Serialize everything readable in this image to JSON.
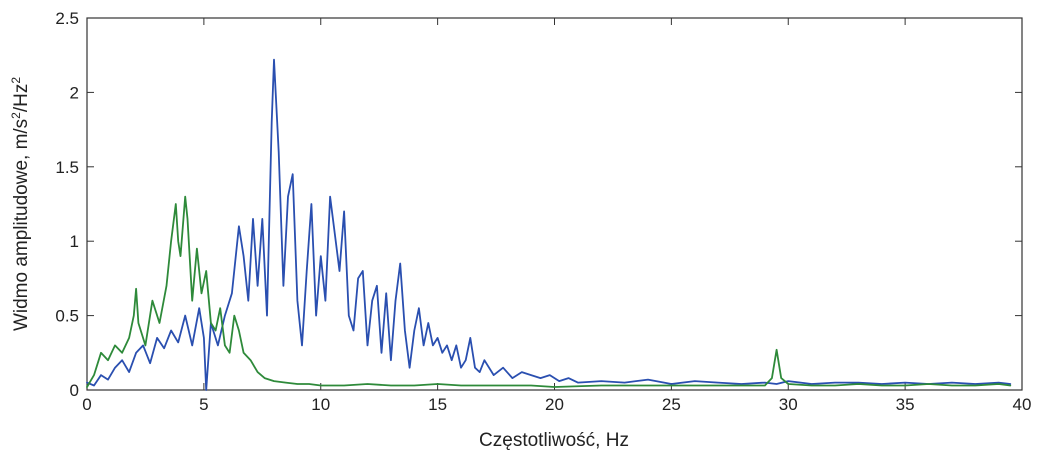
{
  "chart_data": {
    "type": "line",
    "xlabel": "Częstotliwość, Hz",
    "ylabel": "Widmo amplitudowe, m/s",
    "ylabel_sup1": "2",
    "ylabel_mid": "/Hz",
    "ylabel_sup2": "2",
    "xlim": [
      0,
      40
    ],
    "ylim": [
      0,
      2.5
    ],
    "xticks": [
      "0",
      "5",
      "10",
      "15",
      "20",
      "25",
      "30",
      "35",
      "40"
    ],
    "yticks": [
      "0",
      "0.5",
      "1",
      "1.5",
      "2",
      "2.5"
    ],
    "grid": false,
    "series": [
      {
        "color": "#2a4fb0",
        "x": [
          0,
          0.3,
          0.6,
          0.9,
          1.2,
          1.5,
          1.8,
          2.1,
          2.4,
          2.7,
          3.0,
          3.3,
          3.6,
          3.9,
          4.2,
          4.5,
          4.8,
          5.0,
          5.1,
          5.3,
          5.6,
          5.9,
          6.2,
          6.5,
          6.7,
          6.9,
          7.1,
          7.3,
          7.5,
          7.7,
          7.9,
          8.0,
          8.2,
          8.4,
          8.6,
          8.8,
          9.0,
          9.2,
          9.4,
          9.6,
          9.8,
          10.0,
          10.2,
          10.4,
          10.6,
          10.8,
          11.0,
          11.2,
          11.4,
          11.6,
          11.8,
          12.0,
          12.2,
          12.4,
          12.6,
          12.8,
          13.0,
          13.2,
          13.4,
          13.6,
          13.8,
          14.0,
          14.2,
          14.4,
          14.6,
          14.8,
          15.0,
          15.2,
          15.4,
          15.6,
          15.8,
          16.0,
          16.2,
          16.4,
          16.6,
          16.8,
          17.0,
          17.4,
          17.8,
          18.2,
          18.6,
          19.0,
          19.4,
          19.8,
          20.2,
          20.6,
          21.0,
          22,
          23,
          24,
          25,
          26,
          27,
          28,
          29,
          29.5,
          30,
          31,
          32,
          33,
          34,
          35,
          36,
          37,
          38,
          39,
          39.5
        ],
        "y": [
          0.05,
          0.03,
          0.1,
          0.07,
          0.15,
          0.2,
          0.12,
          0.25,
          0.3,
          0.18,
          0.35,
          0.28,
          0.4,
          0.32,
          0.5,
          0.3,
          0.55,
          0.35,
          0.0,
          0.45,
          0.3,
          0.5,
          0.65,
          1.1,
          0.9,
          0.6,
          1.15,
          0.7,
          1.15,
          0.5,
          1.8,
          2.22,
          1.6,
          0.7,
          1.3,
          1.45,
          0.6,
          0.3,
          0.8,
          1.25,
          0.5,
          0.9,
          0.6,
          1.3,
          1.05,
          0.8,
          1.2,
          0.5,
          0.4,
          0.75,
          0.8,
          0.3,
          0.6,
          0.7,
          0.25,
          0.65,
          0.2,
          0.6,
          0.85,
          0.4,
          0.15,
          0.4,
          0.55,
          0.3,
          0.45,
          0.3,
          0.35,
          0.25,
          0.3,
          0.2,
          0.3,
          0.15,
          0.2,
          0.35,
          0.15,
          0.12,
          0.2,
          0.1,
          0.15,
          0.08,
          0.12,
          0.1,
          0.08,
          0.1,
          0.06,
          0.08,
          0.05,
          0.06,
          0.05,
          0.07,
          0.04,
          0.06,
          0.05,
          0.04,
          0.05,
          0.04,
          0.06,
          0.04,
          0.05,
          0.05,
          0.04,
          0.05,
          0.04,
          0.05,
          0.04,
          0.05,
          0.04
        ]
      },
      {
        "color": "#2e8a3a",
        "x": [
          0,
          0.3,
          0.6,
          0.9,
          1.2,
          1.5,
          1.8,
          2.0,
          2.1,
          2.2,
          2.5,
          2.8,
          3.1,
          3.4,
          3.6,
          3.8,
          3.9,
          4.0,
          4.2,
          4.3,
          4.5,
          4.7,
          4.9,
          5.1,
          5.3,
          5.5,
          5.7,
          5.9,
          6.1,
          6.3,
          6.5,
          6.7,
          7.0,
          7.3,
          7.6,
          8.0,
          8.5,
          9.0,
          9.5,
          10,
          11,
          12,
          13,
          14,
          15,
          16,
          17,
          18,
          19,
          20,
          22,
          24,
          26,
          28,
          29,
          29.3,
          29.5,
          29.7,
          30,
          31,
          32,
          33,
          34,
          35,
          36,
          37,
          38,
          39,
          39.5
        ],
        "y": [
          0.02,
          0.1,
          0.25,
          0.2,
          0.3,
          0.25,
          0.35,
          0.5,
          0.68,
          0.45,
          0.3,
          0.6,
          0.45,
          0.7,
          1.0,
          1.25,
          1.0,
          0.9,
          1.3,
          1.15,
          0.6,
          0.95,
          0.65,
          0.8,
          0.45,
          0.4,
          0.55,
          0.3,
          0.25,
          0.5,
          0.4,
          0.25,
          0.2,
          0.12,
          0.08,
          0.06,
          0.05,
          0.04,
          0.04,
          0.03,
          0.03,
          0.04,
          0.03,
          0.03,
          0.04,
          0.03,
          0.03,
          0.03,
          0.03,
          0.02,
          0.03,
          0.03,
          0.03,
          0.03,
          0.03,
          0.08,
          0.27,
          0.08,
          0.04,
          0.03,
          0.03,
          0.04,
          0.03,
          0.03,
          0.04,
          0.03,
          0.03,
          0.04,
          0.03
        ]
      }
    ]
  }
}
